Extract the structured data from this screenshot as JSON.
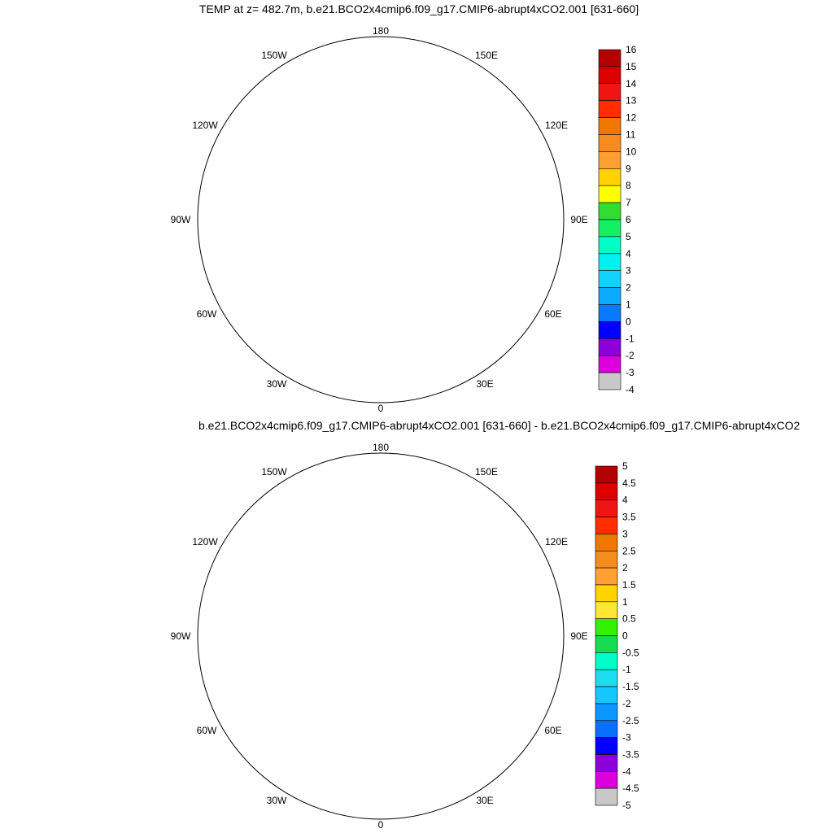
{
  "panels": [
    {
      "title": "TEMP at z= 482.7m, b.e21.BCO2x4cmip6.f09_g17.CMIP6-abrupt4xCO2.001 [631-660]",
      "longitude_labels": [
        "180",
        "150E",
        "120E",
        "90E",
        "60E",
        "30E",
        "0",
        "30W",
        "60W",
        "90W",
        "120W",
        "150W"
      ],
      "colorbar": {
        "labels": [
          "16",
          "15",
          "14",
          "13",
          "12",
          "11",
          "10",
          "9",
          "8",
          "7",
          "6",
          "5",
          "4",
          "3",
          "2",
          "1",
          "0",
          "-1",
          "-2",
          "-3",
          "-4"
        ],
        "colors": [
          "#b40000",
          "#dc0000",
          "#f01414",
          "#ff2d00",
          "#f07800",
          "#f78c1e",
          "#ffa032",
          "#ffd200",
          "#ffff00",
          "#32dc32",
          "#14f064",
          "#00ffc8",
          "#00f0f0",
          "#14d2ff",
          "#0aaaff",
          "#0a78ff",
          "#0000ff",
          "#8c00dc",
          "#dc00dc",
          "#c8c8c8",
          "#6e6e6e"
        ]
      }
    },
    {
      "title": "b.e21.BCO2x4cmip6.f09_g17.CMIP6-abrupt4xCO2.001 [631-660] - b.e21.BCO2x4cmip6.f09_g17.CMIP6-abrupt4xCO2",
      "longitude_labels": [
        "180",
        "150E",
        "120E",
        "90E",
        "60E",
        "30E",
        "0",
        "30W",
        "60W",
        "90W",
        "120W",
        "150W"
      ],
      "colorbar": {
        "labels": [
          "5",
          "4.5",
          "4",
          "3.5",
          "3",
          "2.5",
          "2",
          "1.5",
          "1",
          "0.5",
          "0",
          "-0.5",
          "-1",
          "-1.5",
          "-2",
          "-2.5",
          "-3",
          "-3.5",
          "-4",
          "-4.5",
          "-5"
        ],
        "colors": [
          "#b40000",
          "#dc0000",
          "#f01414",
          "#ff2d00",
          "#f07800",
          "#f78c1e",
          "#ffa032",
          "#ffd200",
          "#ffe632",
          "#32f000",
          "#14dc50",
          "#00ffc8",
          "#1edcf0",
          "#14c8ff",
          "#0a96ff",
          "#0a6eff",
          "#0000ff",
          "#8c00dc",
          "#dc00dc",
          "#c8c8c8",
          "#6e6e6e"
        ]
      }
    }
  ],
  "colors": {
    "dark_red": "#b40000",
    "red": "#e60a0a",
    "red_orange": "#ff2d00",
    "orange": "#f5961e",
    "coast": "#000000"
  }
}
